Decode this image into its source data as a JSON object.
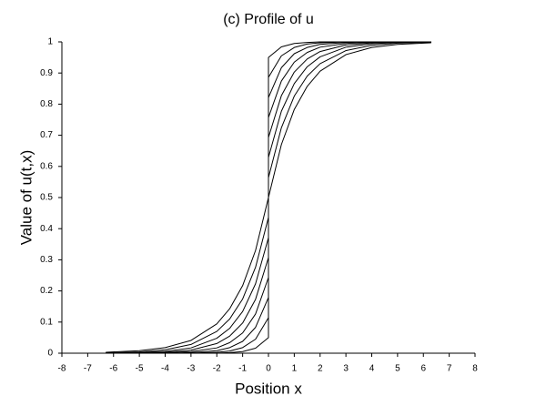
{
  "chart_data": {
    "type": "line",
    "title": "(c) Profile of u",
    "x_label": "Position x",
    "y_label": "Value of u(t,x)",
    "x": [
      -6.3,
      -5,
      -4,
      -3,
      -2,
      -1.5,
      -1,
      -0.5,
      0,
      0,
      0.5,
      1,
      1.5,
      2,
      3,
      4,
      5,
      6.3
    ],
    "series": [
      {
        "color": "#000000",
        "values": [
          0.003,
          0.008,
          0.018,
          0.041,
          0.094,
          0.143,
          0.217,
          0.33,
          0.5,
          0.5,
          0.67,
          0.783,
          0.857,
          0.906,
          0.959,
          0.982,
          0.992,
          0.997
        ]
      },
      {
        "color": "#000000",
        "values": [
          0.001,
          0.004,
          0.011,
          0.028,
          0.07,
          0.11,
          0.174,
          0.276,
          0.436,
          0.564,
          0.724,
          0.826,
          0.89,
          0.93,
          0.972,
          0.989,
          0.996,
          0.999
        ]
      },
      {
        "color": "#000000",
        "values": [
          0.001,
          0.002,
          0.006,
          0.017,
          0.048,
          0.08,
          0.134,
          0.223,
          0.371,
          0.629,
          0.777,
          0.866,
          0.92,
          0.952,
          0.983,
          0.994,
          0.998,
          0.999
        ]
      },
      {
        "color": "#000000",
        "values": [
          0,
          0.001,
          0.003,
          0.01,
          0.031,
          0.055,
          0.097,
          0.173,
          0.307,
          0.693,
          0.827,
          0.903,
          0.945,
          0.969,
          0.99,
          0.997,
          0.999,
          1
        ]
      },
      {
        "color": "#000000",
        "values": [
          0,
          0,
          0.001,
          0.005,
          0.017,
          0.034,
          0.065,
          0.126,
          0.243,
          0.757,
          0.874,
          0.935,
          0.966,
          0.983,
          0.995,
          0.999,
          1,
          1
        ]
      },
      {
        "color": "#000000",
        "values": [
          0,
          0,
          0,
          0.002,
          0.008,
          0.018,
          0.038,
          0.083,
          0.179,
          0.821,
          0.917,
          0.962,
          0.982,
          0.992,
          0.998,
          1,
          1,
          1
        ]
      },
      {
        "color": "#000000",
        "values": [
          0,
          0,
          0,
          0,
          0.003,
          0.007,
          0.018,
          0.045,
          0.114,
          0.886,
          0.955,
          0.982,
          0.993,
          0.997,
          1,
          1,
          1,
          1
        ]
      },
      {
        "color": "#000000",
        "values": [
          0,
          0,
          0,
          0,
          0,
          0.002,
          0.005,
          0.016,
          0.05,
          0.95,
          0.984,
          0.995,
          0.998,
          1,
          1,
          1,
          1,
          1
        ]
      }
    ],
    "xlim": [
      -8,
      8
    ],
    "xticks": [
      -8,
      -7,
      -6,
      -5,
      -4,
      -3,
      -2,
      -1,
      0,
      1,
      2,
      3,
      4,
      5,
      6,
      7,
      8
    ],
    "ylim": [
      0,
      1
    ],
    "yticks": [
      0,
      0.1,
      0.2,
      0.3,
      0.4,
      0.5,
      0.6,
      0.7,
      0.8,
      0.9,
      1
    ],
    "grid": false
  }
}
